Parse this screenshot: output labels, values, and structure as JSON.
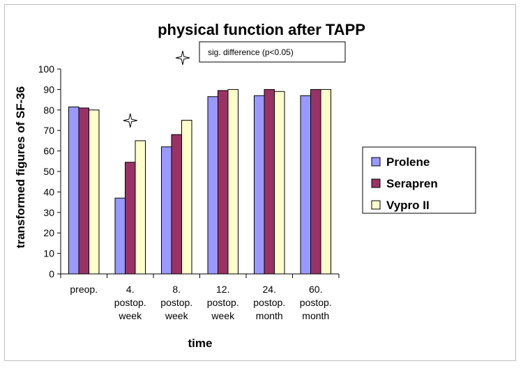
{
  "chart_data": {
    "type": "bar",
    "title": "physical function after TAPP",
    "xlabel": "time",
    "ylabel": "transformed figures of SF-36",
    "ylim": [
      0,
      100
    ],
    "yticks": [
      0,
      10,
      20,
      30,
      40,
      50,
      60,
      70,
      80,
      90,
      100
    ],
    "grid": false,
    "legend_position": "right",
    "categories": [
      [
        "preop."
      ],
      [
        "4.",
        "postop.",
        "week"
      ],
      [
        "8.",
        "postop.",
        "week"
      ],
      [
        "12.",
        "postop.",
        "week"
      ],
      [
        "24.",
        "postop.",
        "month"
      ],
      [
        "60.",
        "postop.",
        "month"
      ]
    ],
    "series": [
      {
        "name": "Prolene",
        "color": "#9999ff",
        "values": [
          81.5,
          37,
          62,
          86.5,
          87,
          87
        ]
      },
      {
        "name": "Serapren",
        "color": "#993366",
        "values": [
          81,
          54.5,
          68,
          89.5,
          90,
          90
        ]
      },
      {
        "name": "Vypro II",
        "color": "#ffffcc",
        "values": [
          80,
          65,
          75,
          90,
          89,
          90
        ]
      }
    ],
    "annotations": {
      "marker_symbol": "four-point-star",
      "marker_label": "sig. difference (p<0.05)",
      "marked_categories": [
        1
      ]
    }
  }
}
